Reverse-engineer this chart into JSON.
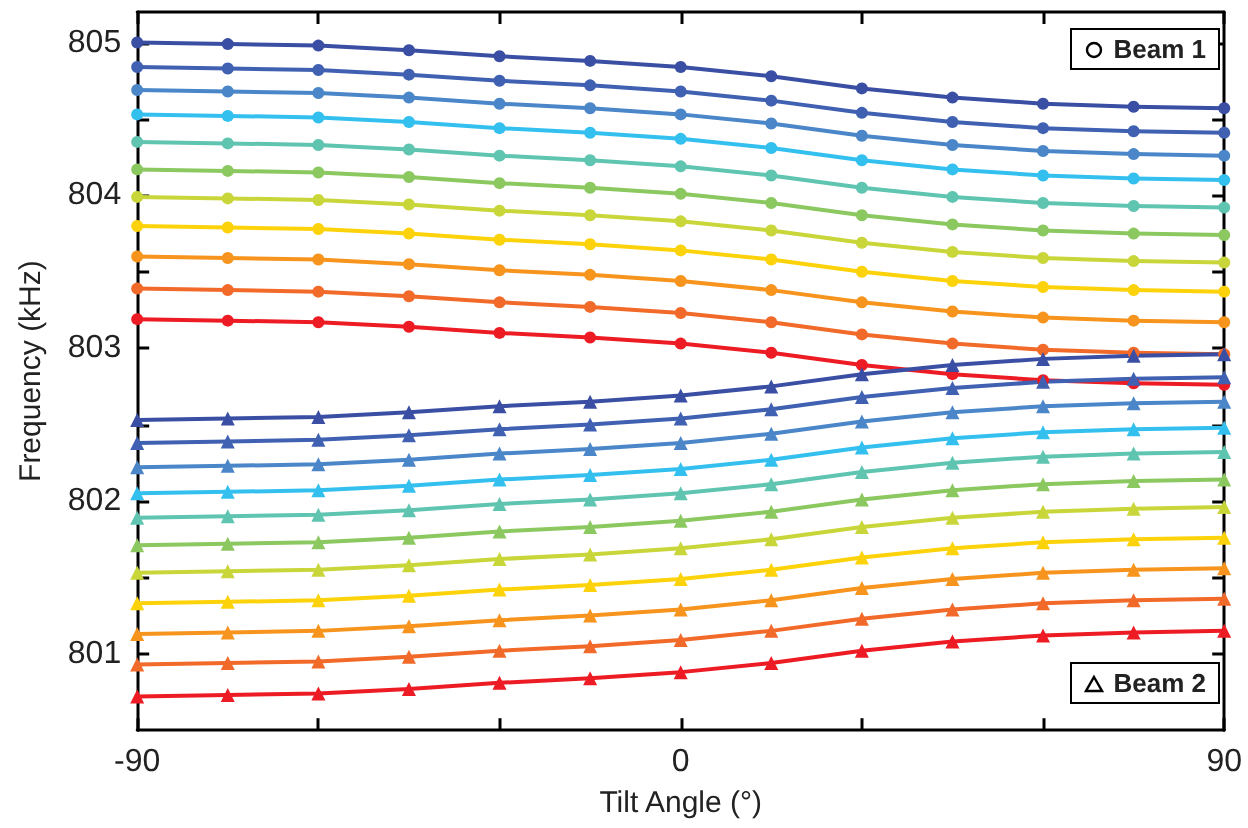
{
  "chart_data": {
    "type": "line",
    "xlabel": "Tilt Angle (°)",
    "ylabel": "Frequency (kHz)",
    "x": [
      -90,
      -75,
      -60,
      -45,
      -30,
      -15,
      0,
      15,
      30,
      45,
      60,
      75,
      90
    ],
    "xlim": [
      -90,
      90
    ],
    "xticks": [
      -90,
      {
        "value": -60,
        "label": null
      },
      {
        "value": -30,
        "label": null
      },
      0,
      {
        "value": 30,
        "label": null
      },
      {
        "value": 60,
        "label": null
      },
      90
    ],
    "ylim": [
      800.5,
      805.2
    ],
    "yticks": [
      801,
      {
        "value": 801.5,
        "label": null
      },
      802,
      {
        "value": 802.5,
        "label": null
      },
      803,
      {
        "value": 803.5,
        "label": null
      },
      804,
      {
        "value": 804.5,
        "label": null
      },
      805
    ],
    "grid": false,
    "line_style": "solid",
    "annotations": [
      "Beam 1",
      "Beam 2"
    ],
    "series": [
      {
        "marker": "circle",
        "color": "#3a4fa3",
        "values": [
          805.0,
          804.99,
          804.98,
          804.95,
          804.91,
          804.88,
          804.84,
          804.78,
          804.7,
          804.64,
          804.6,
          804.58,
          804.57
        ]
      },
      {
        "marker": "circle",
        "color": "#4060b2",
        "values": [
          804.84,
          804.83,
          804.82,
          804.79,
          804.75,
          804.72,
          804.68,
          804.62,
          804.54,
          804.48,
          804.44,
          804.42,
          804.41
        ]
      },
      {
        "marker": "circle",
        "color": "#4a86c8",
        "values": [
          804.69,
          804.68,
          804.67,
          804.64,
          804.6,
          804.57,
          804.53,
          804.47,
          804.39,
          804.33,
          804.29,
          804.27,
          804.26
        ]
      },
      {
        "marker": "circle",
        "color": "#33c0ef",
        "values": [
          804.53,
          804.52,
          804.51,
          804.48,
          804.44,
          804.41,
          804.37,
          804.31,
          804.23,
          804.17,
          804.13,
          804.11,
          804.1
        ]
      },
      {
        "marker": "circle",
        "color": "#5fc4b0",
        "values": [
          804.35,
          804.34,
          804.33,
          804.3,
          804.26,
          804.23,
          804.19,
          804.13,
          804.05,
          803.99,
          803.95,
          803.93,
          803.92
        ]
      },
      {
        "marker": "circle",
        "color": "#8cc860",
        "values": [
          804.17,
          804.16,
          804.15,
          804.12,
          804.08,
          804.05,
          804.01,
          803.95,
          803.87,
          803.81,
          803.77,
          803.75,
          803.74
        ]
      },
      {
        "marker": "circle",
        "color": "#c8d63a",
        "values": [
          803.99,
          803.98,
          803.97,
          803.94,
          803.9,
          803.87,
          803.83,
          803.77,
          803.69,
          803.63,
          803.59,
          803.57,
          803.56
        ]
      },
      {
        "marker": "circle",
        "color": "#fcd20a",
        "values": [
          803.8,
          803.79,
          803.78,
          803.75,
          803.71,
          803.68,
          803.64,
          803.58,
          803.5,
          803.44,
          803.4,
          803.38,
          803.37
        ]
      },
      {
        "marker": "circle",
        "color": "#f7941d",
        "values": [
          803.6,
          803.59,
          803.58,
          803.55,
          803.51,
          803.48,
          803.44,
          803.38,
          803.3,
          803.24,
          803.2,
          803.18,
          803.17
        ]
      },
      {
        "marker": "circle",
        "color": "#f26a2a",
        "values": [
          803.39,
          803.38,
          803.37,
          803.34,
          803.3,
          803.27,
          803.23,
          803.17,
          803.09,
          803.03,
          802.99,
          802.97,
          802.96
        ]
      },
      {
        "marker": "circle",
        "color": "#ed1c24",
        "values": [
          803.19,
          803.18,
          803.17,
          803.14,
          803.1,
          803.07,
          803.03,
          802.97,
          802.89,
          802.83,
          802.79,
          802.77,
          802.76
        ]
      },
      {
        "marker": "triangle",
        "color": "#3a4fa3",
        "values": [
          802.53,
          802.54,
          802.55,
          802.58,
          802.62,
          802.65,
          802.69,
          802.75,
          802.83,
          802.89,
          802.93,
          802.95,
          802.96
        ]
      },
      {
        "marker": "triangle",
        "color": "#4060b2",
        "values": [
          802.38,
          802.39,
          802.4,
          802.43,
          802.47,
          802.5,
          802.54,
          802.6,
          802.68,
          802.74,
          802.78,
          802.8,
          802.81
        ]
      },
      {
        "marker": "triangle",
        "color": "#4a86c8",
        "values": [
          802.22,
          802.23,
          802.24,
          802.27,
          802.31,
          802.34,
          802.38,
          802.44,
          802.52,
          802.58,
          802.62,
          802.64,
          802.65
        ]
      },
      {
        "marker": "triangle",
        "color": "#33c0ef",
        "values": [
          802.05,
          802.06,
          802.07,
          802.1,
          802.14,
          802.17,
          802.21,
          802.27,
          802.35,
          802.41,
          802.45,
          802.47,
          802.48
        ]
      },
      {
        "marker": "triangle",
        "color": "#5fc4b0",
        "values": [
          801.89,
          801.9,
          801.91,
          801.94,
          801.98,
          802.01,
          802.05,
          802.11,
          802.19,
          802.25,
          802.29,
          802.31,
          802.32
        ]
      },
      {
        "marker": "triangle",
        "color": "#8cc860",
        "values": [
          801.71,
          801.72,
          801.73,
          801.76,
          801.8,
          801.83,
          801.87,
          801.93,
          802.01,
          802.07,
          802.11,
          802.13,
          802.14
        ]
      },
      {
        "marker": "triangle",
        "color": "#c8d63a",
        "values": [
          801.53,
          801.54,
          801.55,
          801.58,
          801.62,
          801.65,
          801.69,
          801.75,
          801.83,
          801.89,
          801.93,
          801.95,
          801.96
        ]
      },
      {
        "marker": "triangle",
        "color": "#fcd20a",
        "values": [
          801.33,
          801.34,
          801.35,
          801.38,
          801.42,
          801.45,
          801.49,
          801.55,
          801.63,
          801.69,
          801.73,
          801.75,
          801.76
        ]
      },
      {
        "marker": "triangle",
        "color": "#f7941d",
        "values": [
          801.13,
          801.14,
          801.15,
          801.18,
          801.22,
          801.25,
          801.29,
          801.35,
          801.43,
          801.49,
          801.53,
          801.55,
          801.56
        ]
      },
      {
        "marker": "triangle",
        "color": "#f26a2a",
        "values": [
          800.93,
          800.94,
          800.95,
          800.98,
          801.02,
          801.05,
          801.09,
          801.15,
          801.23,
          801.29,
          801.33,
          801.35,
          801.36
        ]
      },
      {
        "marker": "triangle",
        "color": "#ed1c24",
        "values": [
          800.72,
          800.73,
          800.74,
          800.77,
          800.81,
          800.84,
          800.88,
          800.94,
          801.02,
          801.08,
          801.12,
          801.14,
          801.15
        ]
      }
    ]
  }
}
